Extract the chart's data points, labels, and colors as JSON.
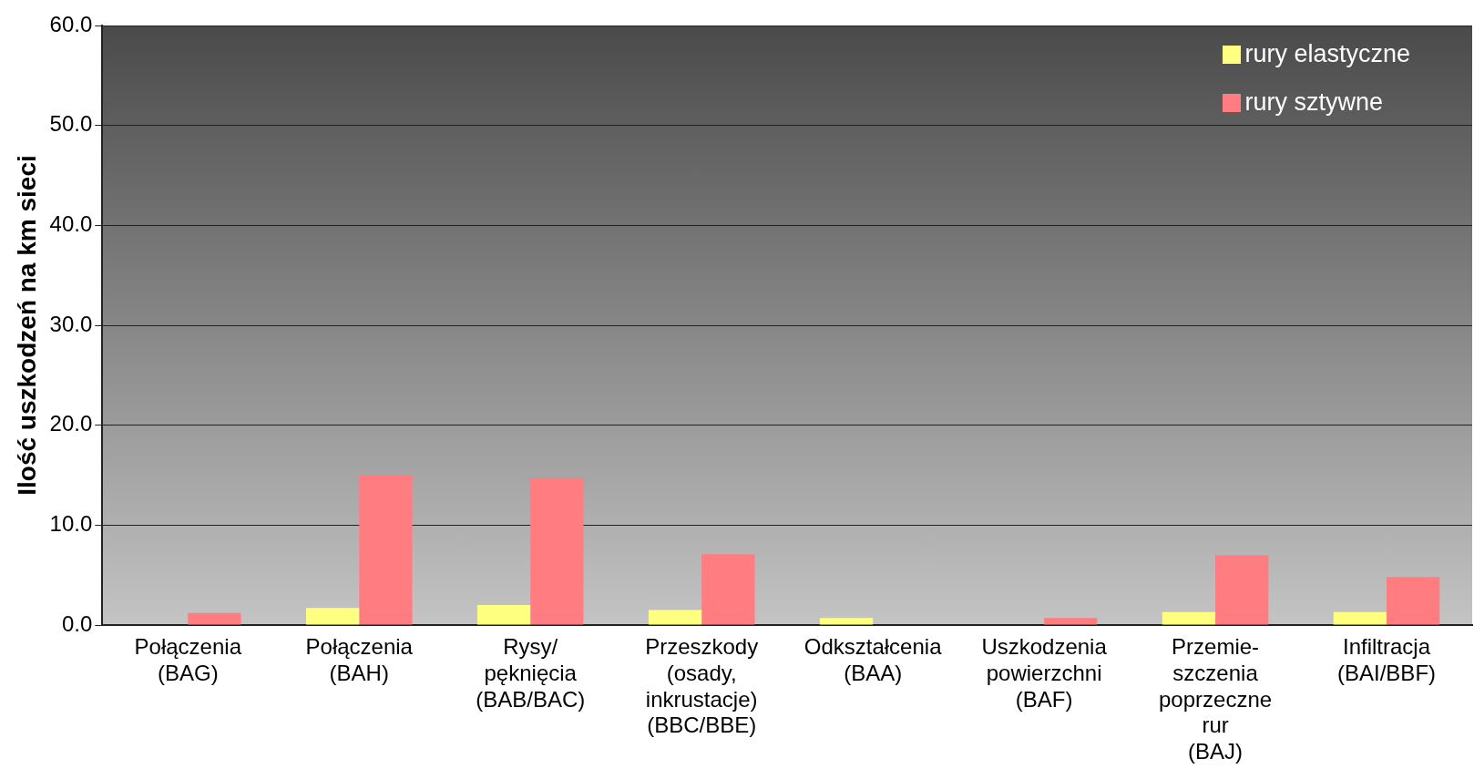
{
  "chart_data": {
    "type": "bar",
    "ylabel": "Ilość uszkodzeń na km sieci",
    "categories": [
      "Połączenia\n(BAG)",
      "Połączenia\n(BAH)",
      "Rysy/\npęknięcia\n(BAB/BAC)",
      "Przeszkody\n(osady,\ninkrustacje)\n(BBC/BBE)",
      "Odkształcenia\n(BAA)",
      "Uszkodzenia\npowierzchni\n(BAF)",
      "Przemie-\nszczenia\npoprzeczne\nrur\n(BAJ)",
      "Infiltracja\n(BAI/BBF)"
    ],
    "series": [
      {
        "name": "rury elastyczne",
        "color": "#ffff80",
        "values": [
          0,
          1.7,
          2.0,
          1.5,
          0.7,
          0,
          1.3,
          1.3
        ]
      },
      {
        "name": "rury sztywne",
        "color": "#ff7c80",
        "values": [
          1.2,
          15.0,
          14.7,
          7.1,
          0,
          0.7,
          7.0,
          4.8
        ]
      }
    ],
    "ylim": [
      0,
      60
    ],
    "yticks": [
      {
        "value": 0,
        "label": "0.0"
      },
      {
        "value": 10,
        "label": "10.0"
      },
      {
        "value": 20,
        "label": "20.0"
      },
      {
        "value": 30,
        "label": "30.0"
      },
      {
        "value": 40,
        "label": "40.0"
      },
      {
        "value": 50,
        "label": "50.0"
      },
      {
        "value": 60,
        "label": "60.0"
      }
    ],
    "grid": "y",
    "legend": "top right"
  }
}
